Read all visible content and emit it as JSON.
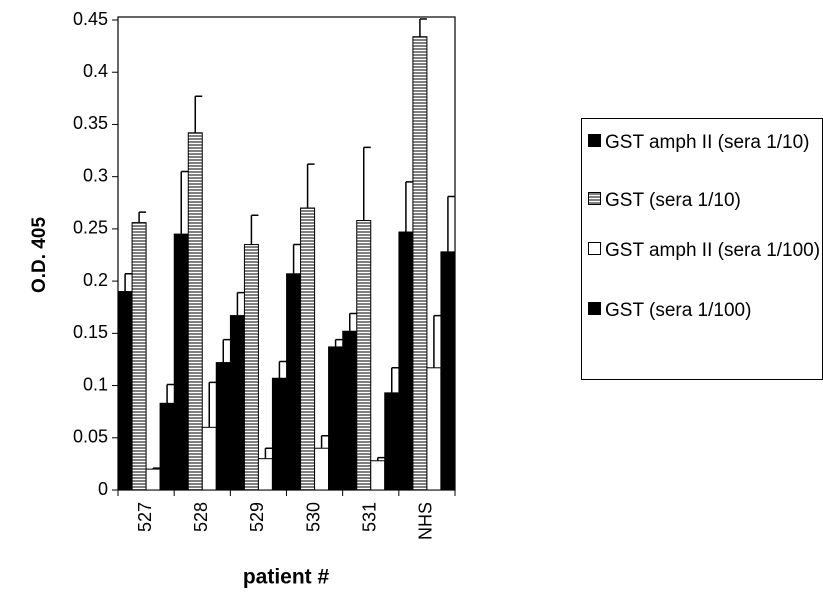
{
  "chart_data": {
    "type": "bar",
    "y_label": "O.D. 405",
    "x_label": "patient #",
    "categories": [
      "527",
      "528",
      "529",
      "530",
      "531",
      "NHS"
    ],
    "series": [
      {
        "name": "GST amph II (sera 1/10)",
        "color": "#000000",
        "pattern": "solid",
        "values": [
          0.19,
          0.245,
          0.167,
          0.207,
          0.152,
          0.247
        ],
        "errors": [
          0.017,
          0.06,
          0.022,
          0.028,
          0.017,
          0.048
        ]
      },
      {
        "name": "GST (sera 1/10)",
        "color": "#808080",
        "pattern": "stripes",
        "values": [
          0.256,
          0.342,
          0.235,
          0.27,
          0.258,
          0.434
        ],
        "errors": [
          0.01,
          0.035,
          0.028,
          0.042,
          0.07,
          0.017
        ]
      },
      {
        "name": "GST amph II (sera 1/100)",
        "color": "#ffffff",
        "pattern": "solid",
        "values": [
          0.02,
          0.06,
          0.03,
          0.04,
          0.028,
          0.117
        ],
        "errors": [
          0.001,
          0.043,
          0.01,
          0.012,
          0.003,
          0.05
        ]
      },
      {
        "name": "GST (sera 1/100)",
        "color": "#000000",
        "pattern": "solid",
        "values": [
          0.083,
          0.122,
          0.107,
          0.137,
          0.093,
          0.228
        ],
        "errors": [
          0.018,
          0.022,
          0.016,
          0.007,
          0.024,
          0.053
        ]
      }
    ],
    "ylim": [
      0,
      0.45
    ],
    "yticks": [
      0,
      0.05,
      0.1,
      0.15,
      0.2,
      0.25,
      0.3,
      0.35,
      0.4,
      0.45
    ],
    "grid": false
  }
}
